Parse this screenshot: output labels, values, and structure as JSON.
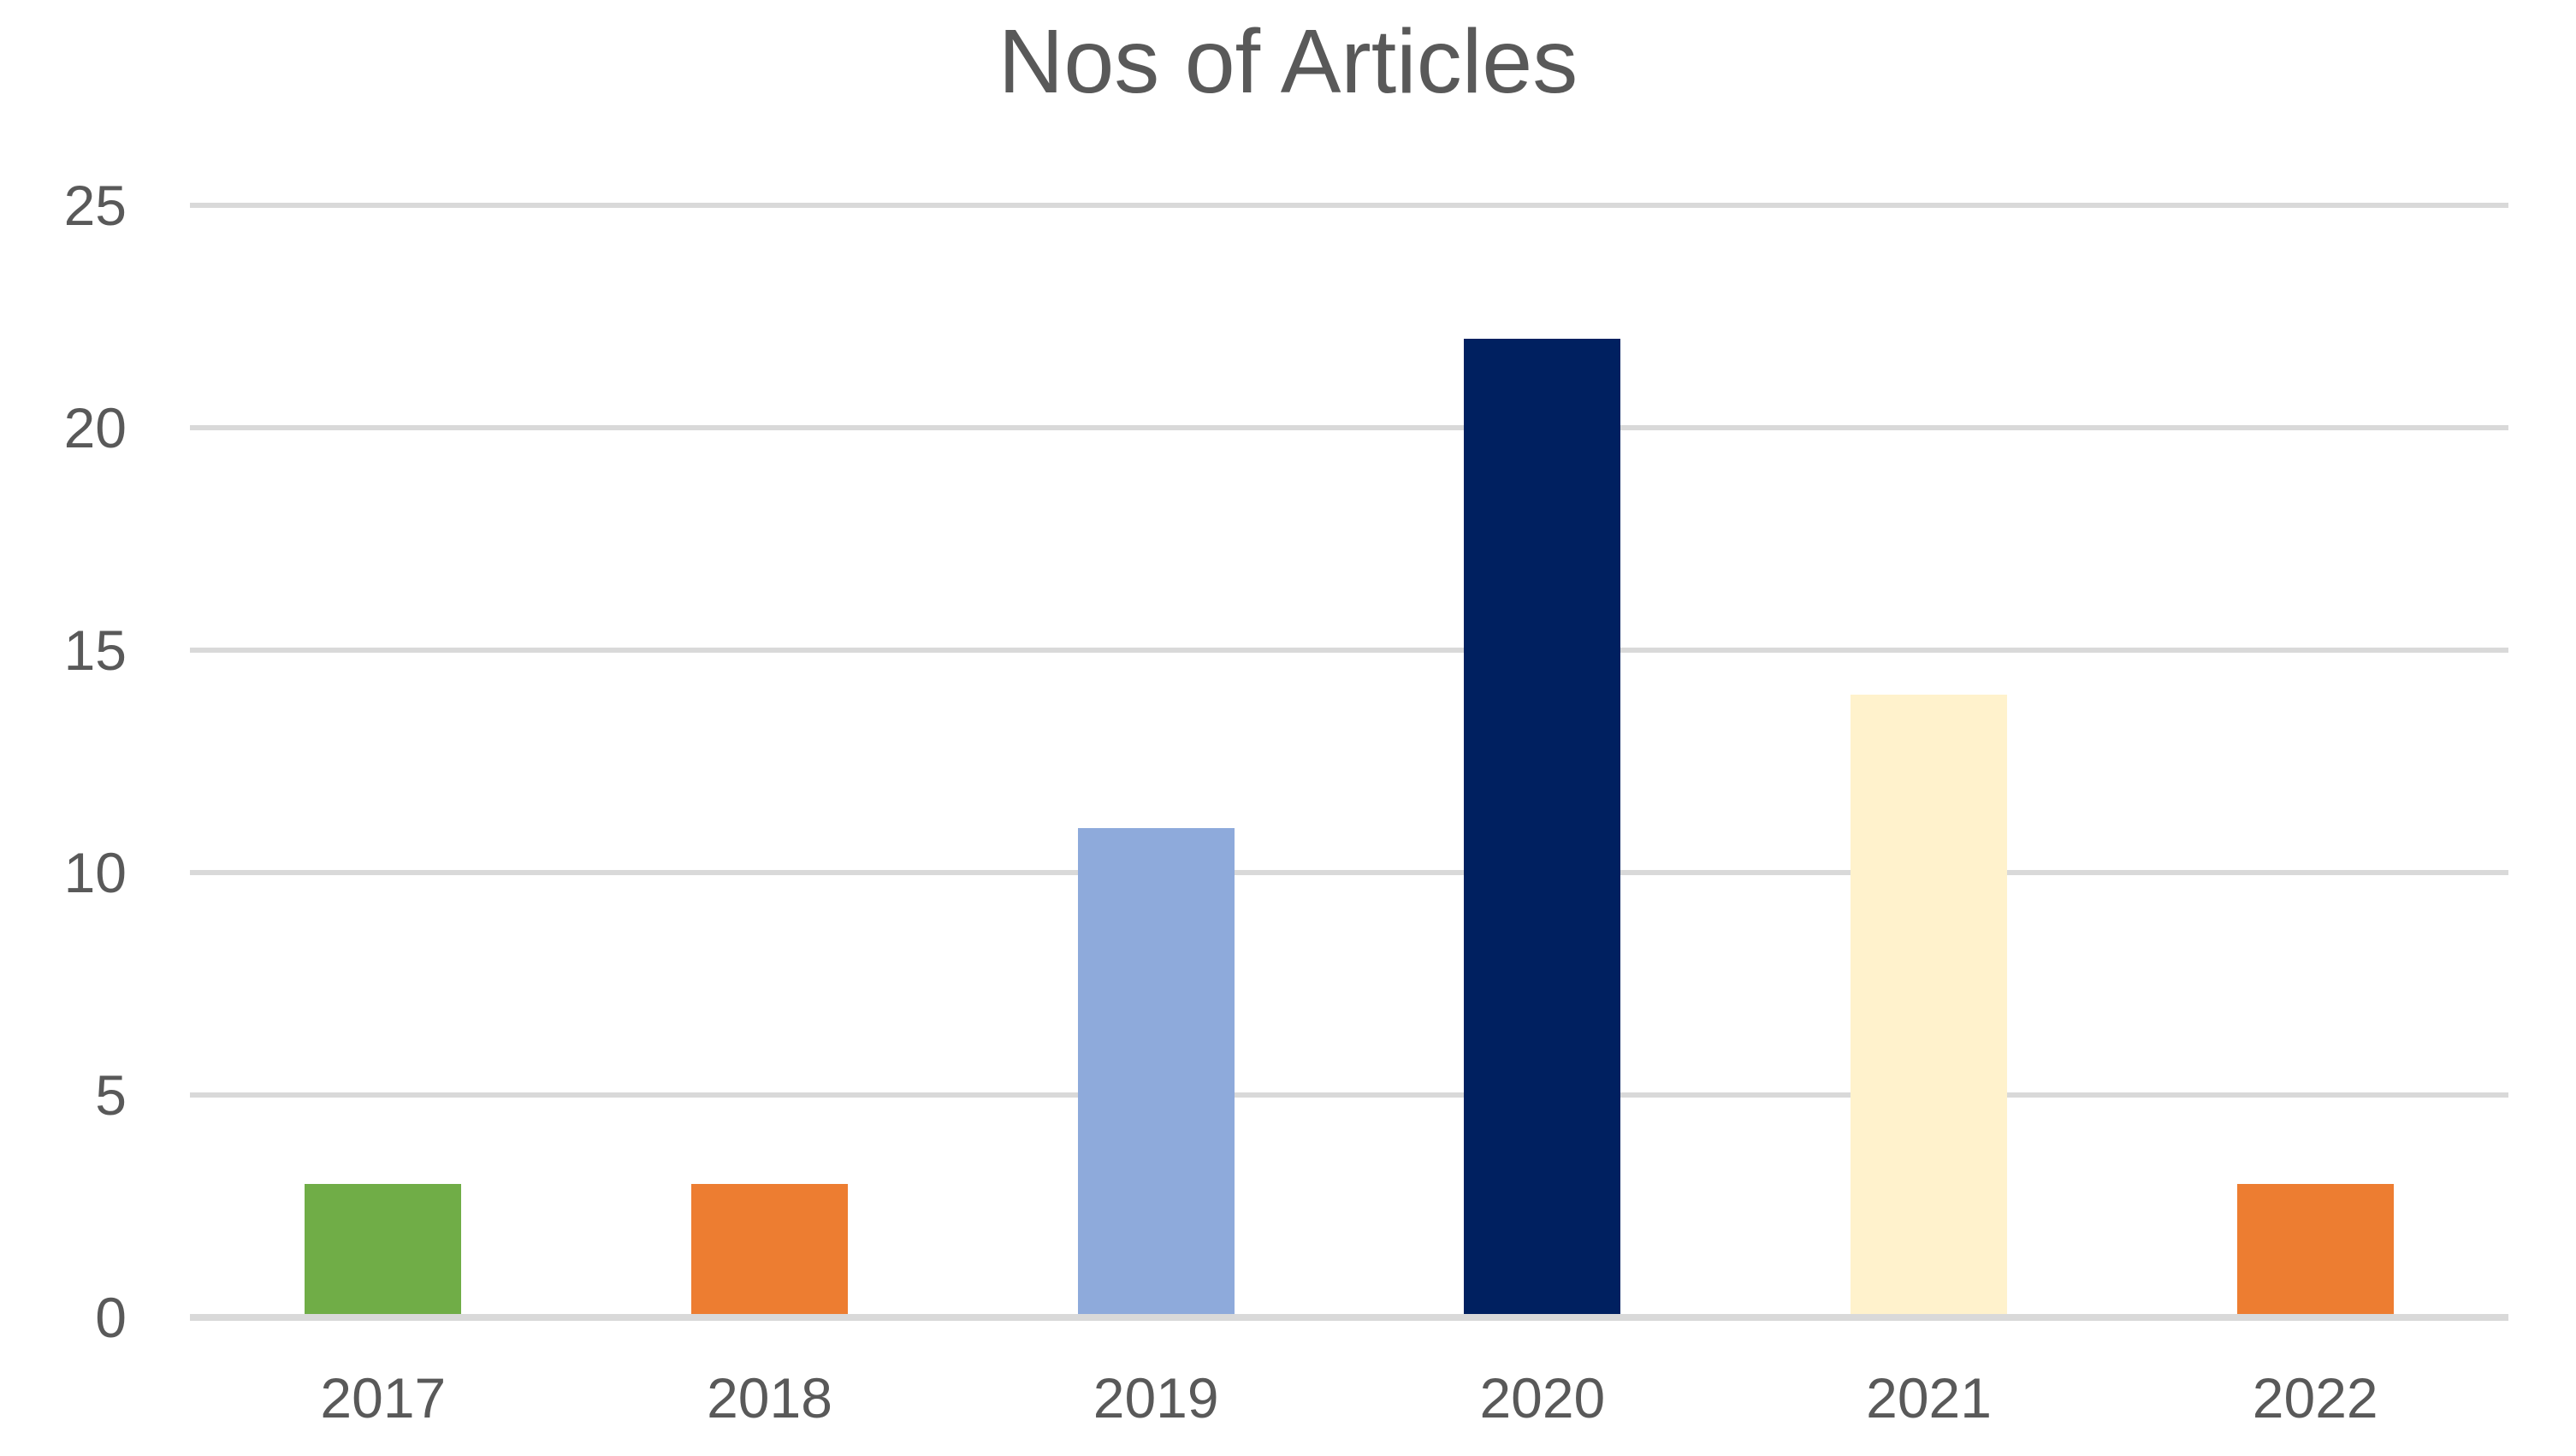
{
  "chart_data": {
    "type": "bar",
    "title": "Nos of Articles",
    "categories": [
      "2017",
      "2018",
      "2019",
      "2020",
      "2021",
      "2022"
    ],
    "values": [
      3,
      3,
      11,
      22,
      14,
      3
    ],
    "bar_colors": [
      "#70AD47",
      "#ED7D31",
      "#8EAADB",
      "#002060",
      "#FFF2CC",
      "#ED7D31"
    ],
    "xlabel": "",
    "ylabel": "",
    "ylim": [
      0,
      25
    ],
    "yticks": [
      0,
      5,
      10,
      15,
      20,
      25
    ],
    "grid": "horizontal",
    "legend": "none",
    "colors": {
      "text": "#595959",
      "gridline": "#D9D9D9",
      "background": "#FFFFFF"
    }
  }
}
